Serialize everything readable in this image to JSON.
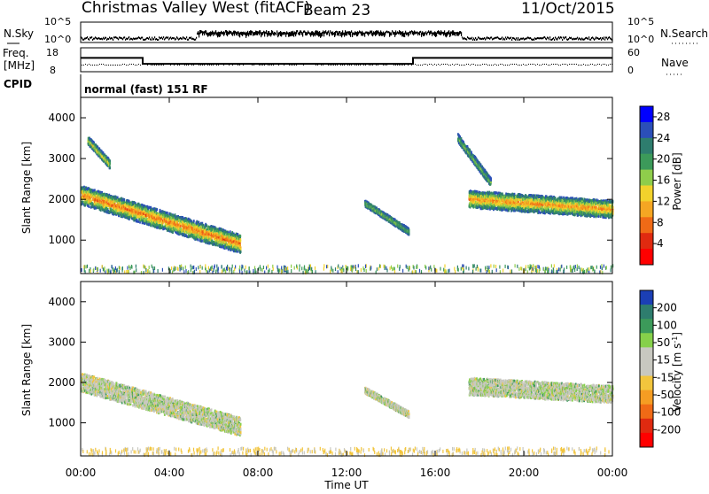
{
  "header": {
    "station": "Christmas Valley West (fitACF)",
    "beam": "Beam 23",
    "date": "11/Oct/2015"
  },
  "noise_panel": {
    "left_label": "N.Sky",
    "right_label": "N.Search",
    "left_ticks": [
      "10^5",
      "10^0"
    ],
    "right_ticks": [
      "10^5",
      "10^0"
    ]
  },
  "freq_panel": {
    "left_label": "Freq.",
    "left_unit": "[MHz]",
    "right_label": "Nave",
    "left_ticks": [
      "18",
      "8"
    ],
    "right_ticks": [
      "60",
      "0"
    ],
    "freq_mhz": [
      {
        "from_h": 0,
        "to_h": 2.8,
        "value": 13.8
      },
      {
        "from_h": 2.8,
        "to_h": 15.0,
        "value": 11.3
      },
      {
        "from_h": 15.0,
        "to_h": 24,
        "value": 13.8
      }
    ]
  },
  "cpid": {
    "label": "CPID",
    "program": "normal (fast) 151 RF"
  },
  "chart_data": [
    {
      "type": "heatmap",
      "name": "power",
      "ylabel": "Slant Range [km]",
      "xlabel": "Time UT",
      "x_ticks": [
        "00:00",
        "04:00",
        "08:00",
        "12:00",
        "16:00",
        "20:00",
        "00:00"
      ],
      "y_ticks": [
        "1000",
        "2000",
        "3000",
        "4000"
      ],
      "xlim_hours": [
        0,
        24
      ],
      "ylim_km": [
        180,
        4500
      ],
      "colorbar": {
        "label": "Power [dB]",
        "ticks": [
          "4",
          "8",
          "12",
          "16",
          "20",
          "24",
          "28"
        ],
        "range": [
          0,
          30
        ],
        "colors": [
          "#0000ff",
          "#2b4fb8",
          "#2e7d6e",
          "#3c9a5a",
          "#8fcd4b",
          "#f2d22c",
          "#f5a623",
          "#f06a16",
          "#e02a10",
          "#ff0000"
        ]
      },
      "echo_regions": [
        {
          "t_start": 0.0,
          "t_end": 7.2,
          "range_start_km": 2100,
          "range_end_km": 900,
          "width_km": 450,
          "peak_db": 26
        },
        {
          "t_start": 17.5,
          "t_end": 24.0,
          "range_start_km": 2000,
          "range_end_km": 1750,
          "width_km": 420,
          "peak_db": 24
        },
        {
          "t_start": 12.8,
          "t_end": 14.8,
          "range_start_km": 1900,
          "range_end_km": 1200,
          "width_km": 150,
          "peak_db": 12
        },
        {
          "t_start": 0.3,
          "t_end": 1.3,
          "range_start_km": 3450,
          "range_end_km": 2850,
          "width_km": 200,
          "peak_db": 18
        },
        {
          "t_start": 17.0,
          "t_end": 18.5,
          "range_start_km": 3500,
          "range_end_km": 2400,
          "width_km": 200,
          "peak_db": 12
        }
      ]
    },
    {
      "type": "heatmap",
      "name": "velocity",
      "ylabel": "Slant Range [km]",
      "xlabel": "Time UT",
      "x_ticks": [
        "00:00",
        "04:00",
        "08:00",
        "12:00",
        "16:00",
        "20:00",
        "00:00"
      ],
      "y_ticks": [
        "1000",
        "2000",
        "3000",
        "4000"
      ],
      "xlim_hours": [
        0,
        24
      ],
      "ylim_km": [
        180,
        4500
      ],
      "colorbar": {
        "label": "Velocity [m s",
        "unit_exp": "-1",
        "unit_close": "]",
        "ticks": [
          "200",
          "100",
          "50",
          "15",
          "-15",
          "-50",
          "-100",
          "-200"
        ],
        "colors": [
          "#1b3fb5",
          "#2e7d6e",
          "#3c9a5a",
          "#86d04a",
          "#c8c8c0",
          "#c8c8c0",
          "#f2c53d",
          "#f59d23",
          "#f06a16",
          "#e02a10",
          "#ff0000"
        ]
      },
      "echo_regions": [
        {
          "t_start": 0.0,
          "t_end": 7.2,
          "range_start_km": 2000,
          "range_end_km": 900,
          "width_km": 450,
          "dominant": "-15..15 and 15..50"
        },
        {
          "t_start": 17.5,
          "t_end": 24.0,
          "range_start_km": 1900,
          "range_end_km": 1700,
          "width_km": 420,
          "dominant": "-15..15"
        },
        {
          "t_start": 12.8,
          "t_end": 14.8,
          "range_start_km": 1800,
          "range_end_km": 1200,
          "width_km": 150,
          "dominant": "-15..15"
        }
      ]
    }
  ]
}
